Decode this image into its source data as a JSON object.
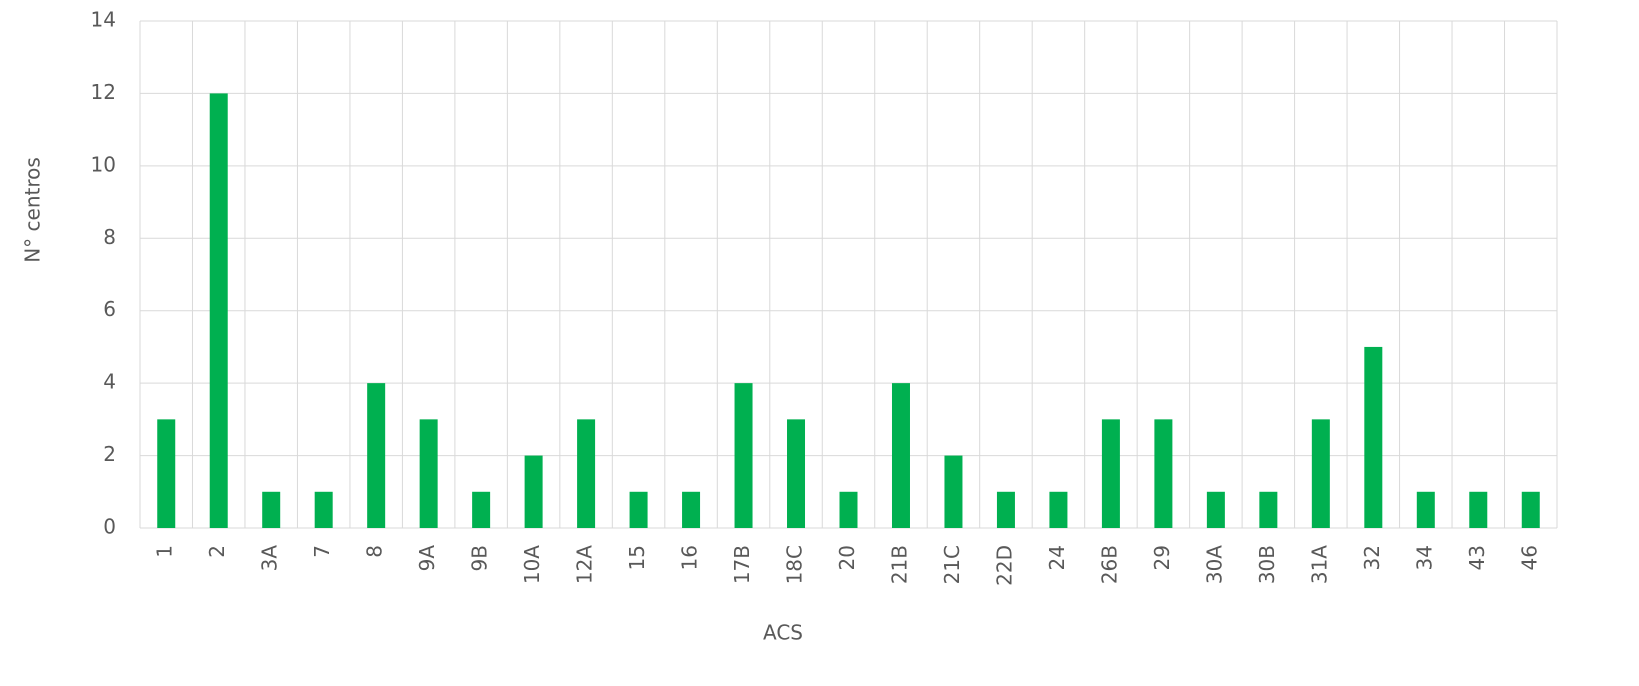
{
  "chart_data": {
    "type": "bar",
    "x_label": "ACS",
    "y_label": "N° centros",
    "categories": [
      "1",
      "2",
      "3A",
      "7",
      "8",
      "9A",
      "9B",
      "10A",
      "12A",
      "15",
      "16",
      "17B",
      "18C",
      "20",
      "21B",
      "21C",
      "22D",
      "24",
      "26B",
      "29",
      "30A",
      "30B",
      "31A",
      "32",
      "34",
      "43",
      "46"
    ],
    "values": [
      3,
      12,
      1,
      1,
      4,
      3,
      1,
      2,
      3,
      1,
      1,
      4,
      3,
      1,
      4,
      2,
      1,
      1,
      3,
      3,
      1,
      1,
      3,
      5,
      1,
      1,
      1
    ],
    "color": "#00b050",
    "ylim": [
      0,
      14
    ],
    "yticks": [
      0,
      2,
      4,
      6,
      8,
      10,
      12,
      14
    ],
    "grid": true
  }
}
